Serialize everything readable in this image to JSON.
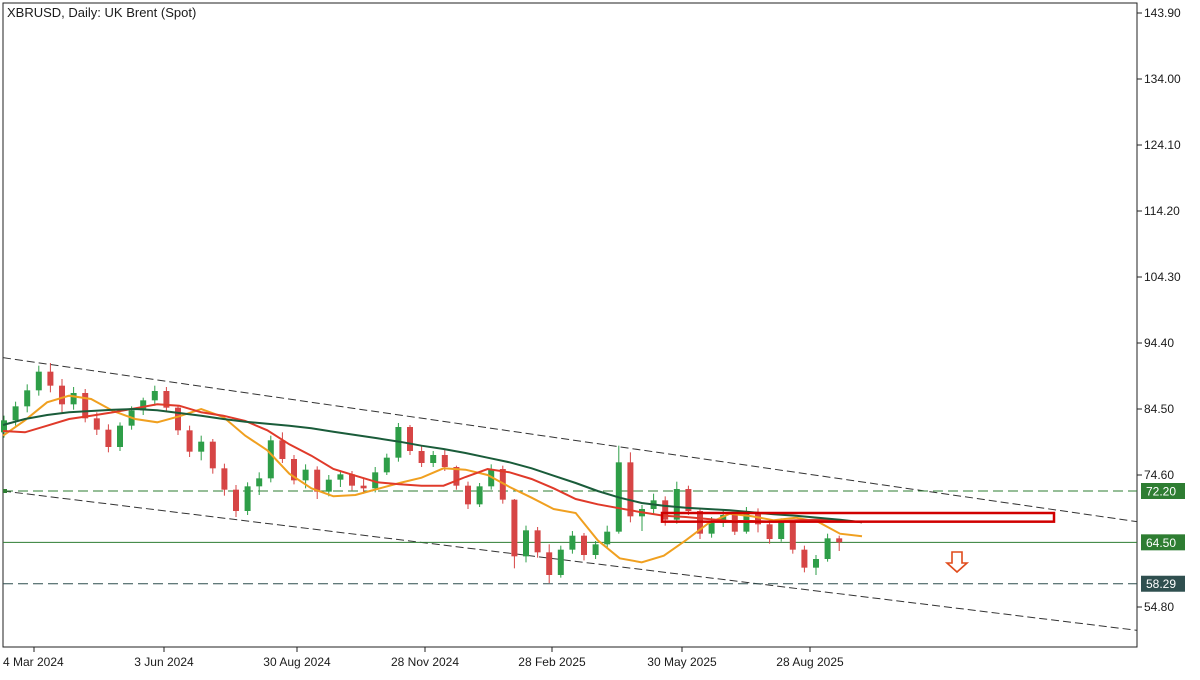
{
  "chart_data": {
    "type": "candlestick",
    "title": "XBRUSD, Daily:  UK Brent (Spot)",
    "y_axis": {
      "ticks": [
        143.9,
        134.0,
        124.1,
        114.2,
        104.3,
        94.4,
        84.5,
        74.6,
        54.8
      ],
      "tick_labels": [
        "143.90",
        "134.00",
        "124.10",
        "114.20",
        "104.30",
        "94.40",
        "84.50",
        "74.60",
        "54.80"
      ],
      "ylim": [
        48.8,
        145.4
      ]
    },
    "x_axis": {
      "tick_labels": [
        "4 Mar 2024",
        "3 Jun 2024",
        "30 Aug 2024",
        "28 Nov 2024",
        "28 Feb 2025",
        "30 May 2025",
        "28 Aug 2025"
      ]
    },
    "price_markers": [
      {
        "value": 72.2,
        "label": "72.20",
        "style": "dashed",
        "color": "#2e7d32"
      },
      {
        "value": 64.5,
        "label": "64.50",
        "style": "solid",
        "color": "#2e7d32"
      },
      {
        "value": 58.29,
        "label": "58.29",
        "style": "dashed",
        "color": "#2f4f4f"
      }
    ],
    "channel": [
      {
        "name": "",
        "from": [
          "4 Mar 2024",
          92.2
        ],
        "to_right_edge": 67.6
      },
      {
        "name": "",
        "from": [
          "4 Mar 2024",
          72.2
        ],
        "to_right_edge": 51.3
      }
    ],
    "resistance_box": {
      "low": 67.6,
      "high": 68.9,
      "color": "#d00000"
    },
    "down_arrow": {
      "value": 61.7,
      "color": "#e04b1c"
    },
    "moving_averages": [
      {
        "color": "#f0a020",
        "values": [
          80.5,
          82.8,
          85.5,
          86.5,
          86.0,
          84.2,
          83.0,
          82.5,
          83.4,
          84.5,
          83.3,
          80.5,
          78.3,
          74.8,
          72.6,
          71.4,
          71.6,
          72.5,
          73.4,
          74.2,
          75.6,
          75.4,
          74.6,
          72.8,
          71.2,
          69.5,
          68.9,
          64.8,
          62.1,
          61.5,
          62.5,
          64.8,
          67.3,
          68.8,
          68.4,
          67.8,
          68.2,
          67.6,
          65.8,
          65.4
        ]
      },
      {
        "color": "#e03a2a",
        "values": [
          81.2,
          81.0,
          82.0,
          83.0,
          83.5,
          84.0,
          84.6,
          85.2,
          85.0,
          84.0,
          83.5,
          82.7,
          81.3,
          79.2,
          77.5,
          75.5,
          74.5,
          73.5,
          73.2,
          73.0,
          73.0,
          74.3,
          75.5,
          75.0,
          74.0,
          72.6,
          71.0,
          70.2,
          69.6,
          69.0,
          68.5,
          68.3,
          68.0,
          67.7,
          67.7,
          67.6,
          67.8,
          67.9,
          67.8,
          67.5
        ]
      },
      {
        "color": "#1a5c3a",
        "values": [
          82.1,
          83.0,
          83.6,
          84.0,
          84.2,
          84.4,
          84.5,
          84.3,
          83.9,
          83.5,
          83.0,
          82.6,
          82.3,
          82.0,
          81.6,
          81.1,
          80.6,
          80.1,
          79.6,
          79.0,
          78.5,
          77.9,
          77.2,
          76.5,
          75.6,
          74.5,
          73.4,
          72.2,
          71.2,
          70.4,
          70.0,
          69.7,
          69.5,
          69.3,
          69.0,
          68.7,
          68.5,
          68.2,
          67.9,
          67.5
        ]
      }
    ],
    "ohlc": [
      [
        81.0,
        83.5,
        80.2,
        82.8
      ],
      [
        82.8,
        85.6,
        82.0,
        84.9
      ],
      [
        84.9,
        88.2,
        84.0,
        87.3
      ],
      [
        87.3,
        91.0,
        86.5,
        90.1
      ],
      [
        90.1,
        91.4,
        87.0,
        88.0
      ],
      [
        88.0,
        89.0,
        84.0,
        85.2
      ],
      [
        85.2,
        87.8,
        84.4,
        86.9
      ],
      [
        86.9,
        87.5,
        82.5,
        83.1
      ],
      [
        83.1,
        84.0,
        80.6,
        81.4
      ],
      [
        81.4,
        82.2,
        78.0,
        78.8
      ],
      [
        78.8,
        82.5,
        78.2,
        82.0
      ],
      [
        82.0,
        84.9,
        81.4,
        84.3
      ],
      [
        84.3,
        86.2,
        83.6,
        85.8
      ],
      [
        85.8,
        88.0,
        85.0,
        87.2
      ],
      [
        87.2,
        87.8,
        84.2,
        84.7
      ],
      [
        84.7,
        85.0,
        80.6,
        81.3
      ],
      [
        81.3,
        82.0,
        77.3,
        78.1
      ],
      [
        78.1,
        80.5,
        76.8,
        79.6
      ],
      [
        79.6,
        80.0,
        74.8,
        75.6
      ],
      [
        75.6,
        76.3,
        71.5,
        72.4
      ],
      [
        72.4,
        73.1,
        68.3,
        69.2
      ],
      [
        69.2,
        73.5,
        68.6,
        72.9
      ],
      [
        72.9,
        75.0,
        71.6,
        74.1
      ],
      [
        74.1,
        80.5,
        73.5,
        79.8
      ],
      [
        79.8,
        81.0,
        76.4,
        77.0
      ],
      [
        77.0,
        77.6,
        73.2,
        73.8
      ],
      [
        73.8,
        76.2,
        72.6,
        75.4
      ],
      [
        75.4,
        75.9,
        71.0,
        72.1
      ],
      [
        72.1,
        74.6,
        71.4,
        73.9
      ],
      [
        73.9,
        75.3,
        72.8,
        74.7
      ],
      [
        74.7,
        75.2,
        72.3,
        73.0
      ],
      [
        73.0,
        74.0,
        71.8,
        72.6
      ],
      [
        72.6,
        75.8,
        72.0,
        75.0
      ],
      [
        75.0,
        77.8,
        74.6,
        77.2
      ],
      [
        77.2,
        82.4,
        76.6,
        81.8
      ],
      [
        81.8,
        82.1,
        77.6,
        78.2
      ],
      [
        78.2,
        79.0,
        75.8,
        76.4
      ],
      [
        76.4,
        78.2,
        75.8,
        77.6
      ],
      [
        77.6,
        78.4,
        75.2,
        75.8
      ],
      [
        75.8,
        76.0,
        72.4,
        73.0
      ],
      [
        73.0,
        73.6,
        69.5,
        70.2
      ],
      [
        70.2,
        73.4,
        69.8,
        72.9
      ],
      [
        72.9,
        76.2,
        72.4,
        75.5
      ],
      [
        75.5,
        76.0,
        70.3,
        70.9
      ],
      [
        70.9,
        71.0,
        60.6,
        62.4
      ],
      [
        62.4,
        67.0,
        61.5,
        66.3
      ],
      [
        66.3,
        66.8,
        62.2,
        63.0
      ],
      [
        63.0,
        64.2,
        58.4,
        59.6
      ],
      [
        59.6,
        64.0,
        59.2,
        63.4
      ],
      [
        63.4,
        66.2,
        62.8,
        65.5
      ],
      [
        65.5,
        65.9,
        61.8,
        62.6
      ],
      [
        62.6,
        64.7,
        62.0,
        64.2
      ],
      [
        64.2,
        67.0,
        63.6,
        66.1
      ],
      [
        66.1,
        79.0,
        65.8,
        76.5
      ],
      [
        76.5,
        78.0,
        67.5,
        68.4
      ],
      [
        68.4,
        70.1,
        66.2,
        69.5
      ],
      [
        69.5,
        71.8,
        68.6,
        70.8
      ],
      [
        70.8,
        71.4,
        67.0,
        67.9
      ],
      [
        67.9,
        73.6,
        67.3,
        72.5
      ],
      [
        72.5,
        73.0,
        68.6,
        69.2
      ],
      [
        69.2,
        69.6,
        65.0,
        65.8
      ],
      [
        65.8,
        68.3,
        65.2,
        67.4
      ],
      [
        67.4,
        69.4,
        66.8,
        68.6
      ],
      [
        68.6,
        69.0,
        65.6,
        66.1
      ],
      [
        66.1,
        69.8,
        65.8,
        69.0
      ],
      [
        69.0,
        69.6,
        66.0,
        67.2
      ],
      [
        67.2,
        68.0,
        64.3,
        65.0
      ],
      [
        65.0,
        68.1,
        64.6,
        67.5
      ],
      [
        67.5,
        67.8,
        62.8,
        63.4
      ],
      [
        63.4,
        64.0,
        60.0,
        60.7
      ],
      [
        60.7,
        62.6,
        59.6,
        62.0
      ],
      [
        62.0,
        65.8,
        61.6,
        65.1
      ],
      [
        65.1,
        65.5,
        63.2,
        64.5
      ]
    ]
  }
}
